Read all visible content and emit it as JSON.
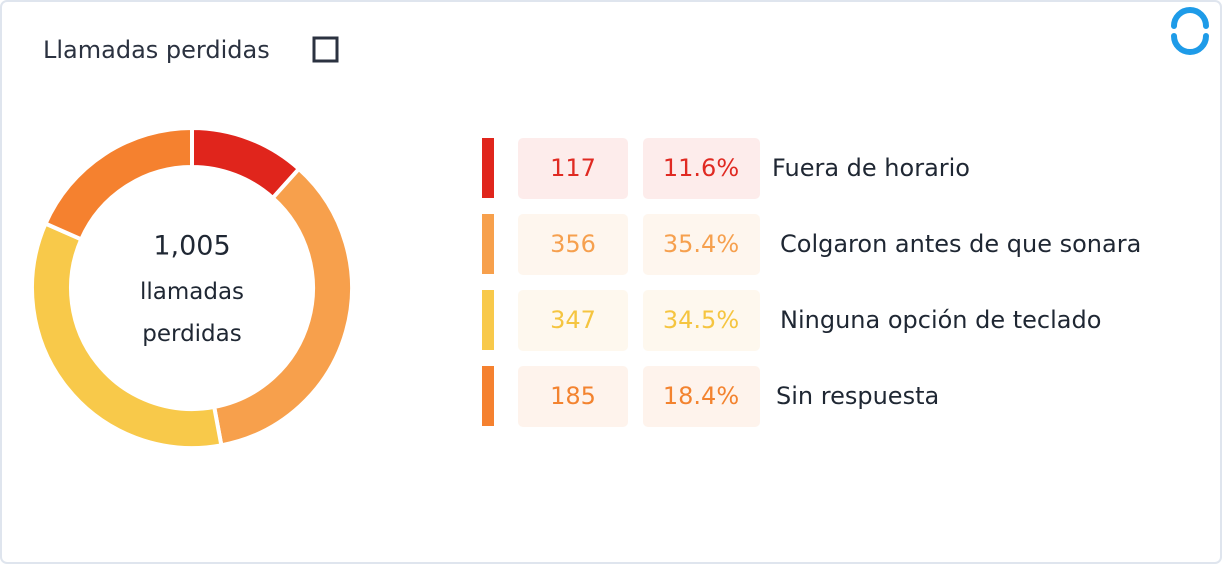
{
  "chart_data": {
    "type": "donut",
    "title": "Llamadas perdidas",
    "total_label": "1,005",
    "center_text": "llamadas perdidas",
    "categories": [
      "Fuera de horario",
      "Colgaron antes de que sonara",
      "Ninguna opción de teclado",
      "Sin respuesta"
    ],
    "values": [
      117,
      356,
      347,
      185
    ],
    "percent_labels": [
      "11.6%",
      "35.4%",
      "34.5%",
      "18.4%"
    ],
    "colors": [
      "#e0251c",
      "#f7a04c",
      "#f8c94a",
      "#f5812f"
    ],
    "text_colors": [
      "#e02a22",
      "#f6a04e",
      "#f5c540",
      "#f3832f"
    ],
    "box_colors": [
      "#fdeceb",
      "#fef6ee",
      "#fef8ee",
      "#fef3ec"
    ]
  }
}
